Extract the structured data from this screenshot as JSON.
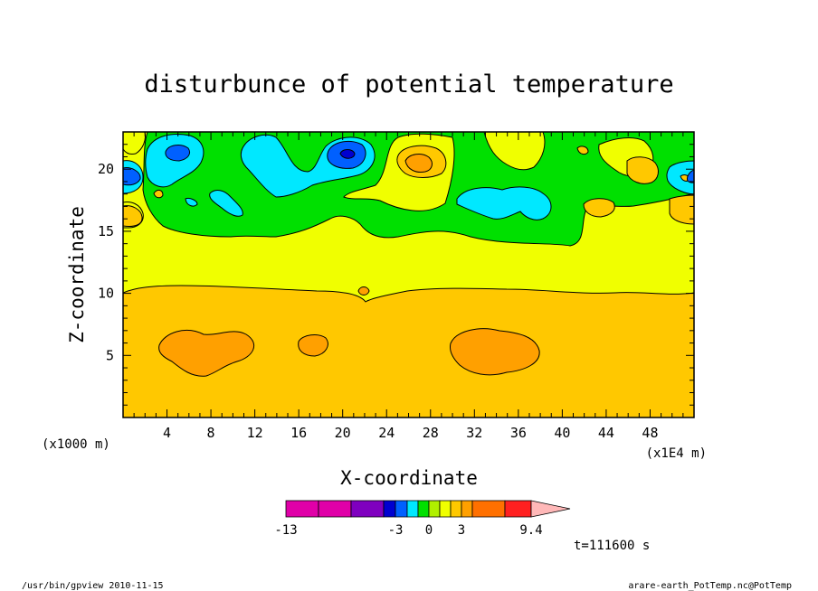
{
  "chart_data": {
    "type": "heatmap",
    "title": "disturbunce of potential temperature",
    "xlabel": "X-coordinate",
    "ylabel": "Z-coordinate",
    "x_unit_left": "(x1000 m)",
    "x_unit_right": "(x1E4 m)",
    "xlim": [
      0,
      52
    ],
    "ylim": [
      0,
      23
    ],
    "x_ticks": [
      4,
      8,
      12,
      16,
      20,
      24,
      28,
      32,
      36,
      40,
      44,
      48
    ],
    "y_ticks": [
      5,
      10,
      15,
      20
    ],
    "time_label": "t=111600 s",
    "colorbar": {
      "colors": [
        "#e000a8",
        "#e000a8",
        "#7f00bf",
        "#0000d0",
        "#0060ff",
        "#00e8ff",
        "#00e000",
        "#b0f000",
        "#f0ff00",
        "#ffc800",
        "#ffa000",
        "#ff7000",
        "#ff2020",
        "#ff8080",
        "#ffb8b8"
      ],
      "tick_labels": [
        "-13",
        "-3",
        "0",
        "3",
        "9.4"
      ]
    },
    "fields": {
      "background": "#ffc800",
      "upper_layer": "#f0ff00",
      "mid_band": "#00e000",
      "cool_cells": "#00e8ff",
      "cold_cores": "#0060ff",
      "coldest": "#0000d0",
      "warm_cells": "#ffa000"
    }
  },
  "footer": {
    "left": "/usr/bin/gpview  2010-11-15",
    "right": "arare-earth_PotTemp.nc@PotTemp"
  }
}
